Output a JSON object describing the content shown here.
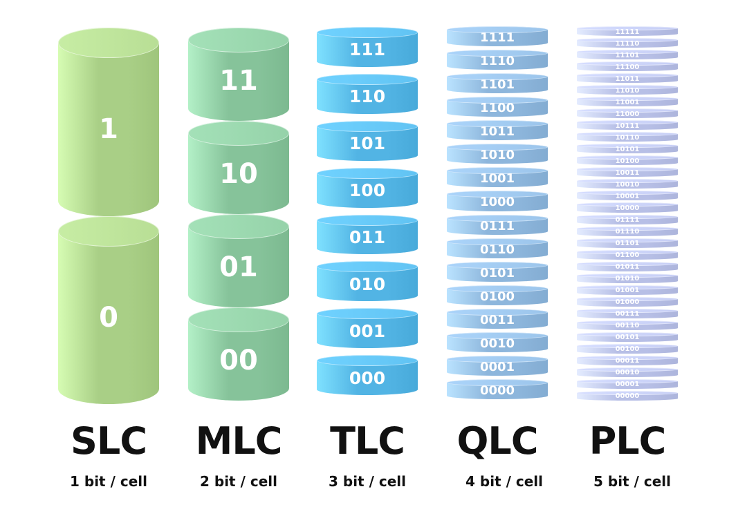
{
  "colors": {
    "slc": "#a9cf86",
    "mlc": "#86c39a",
    "tlc": "#52b4e4",
    "qlc": "#8db6dc",
    "plc": "#b7bfe6"
  },
  "columns": [
    {
      "name": "SLC",
      "subtitle": "1 bit / cell",
      "cells": [
        "1",
        "0"
      ]
    },
    {
      "name": "MLC",
      "subtitle": "2 bit / cell",
      "cells": [
        "11",
        "10",
        "01",
        "00"
      ]
    },
    {
      "name": "TLC",
      "subtitle": "3 bit / cell",
      "cells": [
        "111",
        "110",
        "101",
        "100",
        "011",
        "010",
        "001",
        "000"
      ]
    },
    {
      "name": "QLC",
      "subtitle": "4 bit / cell",
      "cells": [
        "1111",
        "1110",
        "1101",
        "1100",
        "1011",
        "1010",
        "1001",
        "1000",
        "0111",
        "0110",
        "0101",
        "0100",
        "0011",
        "0010",
        "0001",
        "0000"
      ]
    },
    {
      "name": "PLC",
      "subtitle": "5 bit / cell",
      "cells": [
        "11111",
        "11110",
        "11101",
        "11100",
        "11011",
        "11010",
        "11001",
        "11000",
        "10111",
        "10110",
        "10101",
        "10100",
        "10011",
        "10010",
        "10001",
        "10000",
        "01111",
        "01110",
        "01101",
        "01100",
        "01011",
        "01010",
        "01001",
        "01000",
        "00111",
        "00110",
        "00101",
        "00100",
        "00011",
        "00010",
        "00001",
        "00000"
      ]
    }
  ]
}
